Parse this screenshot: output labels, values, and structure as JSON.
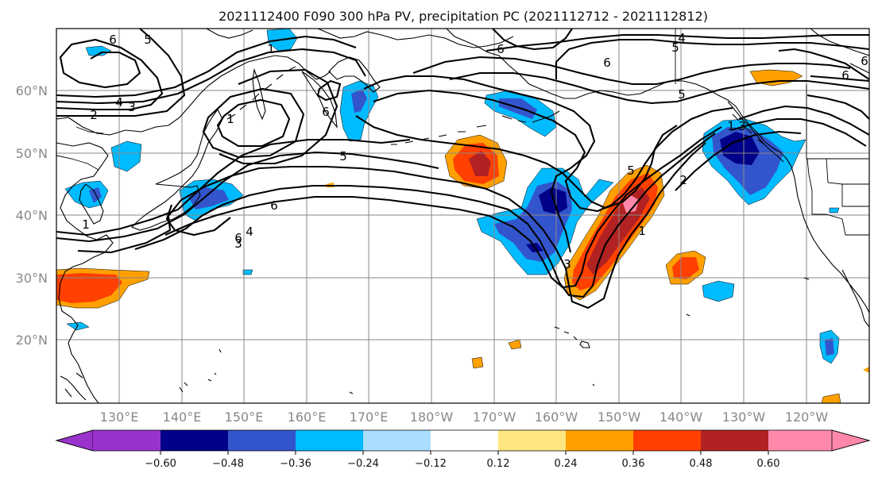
{
  "title": "2021112400 F090 300 hPa PV, precipitation PC (2021112712 - 2021112812)",
  "map": {
    "lat_labels": [
      "60°N",
      "50°N",
      "40°N",
      "30°N",
      "20°N"
    ],
    "lon_labels": [
      "130°E",
      "140°E",
      "150°E",
      "160°E",
      "170°E",
      "180°W",
      "170°W",
      "160°W",
      "150°W",
      "140°W",
      "130°W",
      "120°W"
    ],
    "contour_labels": [
      "6",
      "5",
      "1",
      "6",
      "5",
      "4",
      "5",
      "6",
      "6",
      "4",
      "3",
      "2",
      "1",
      "6",
      "6",
      "5",
      "6",
      "4",
      "3",
      "1",
      "5",
      "2",
      "1",
      "3",
      "1",
      "3",
      "6"
    ]
  },
  "colorbar": {
    "colors": [
      "#9933cc",
      "#000088",
      "#3355cc",
      "#00bbff",
      "#aaddff",
      "#ffffff",
      "#ffe680",
      "#ffa000",
      "#ff4000",
      "#b22222",
      "#ff88aa"
    ],
    "tick_labels": [
      "−0.60",
      "−0.48",
      "−0.36",
      "−0.24",
      "−0.12",
      "0.12",
      "0.24",
      "0.36",
      "0.48",
      "0.60"
    ]
  },
  "colors": {
    "strong_negative": "#000088",
    "negative": "#3355cc",
    "weak_negative": "#00bbff",
    "weak_positive": "#ffe680",
    "positive": "#ffa000",
    "strong_positive": "#ff4000",
    "very_strong_positive": "#b22222",
    "extreme_positive": "#ff88aa"
  }
}
